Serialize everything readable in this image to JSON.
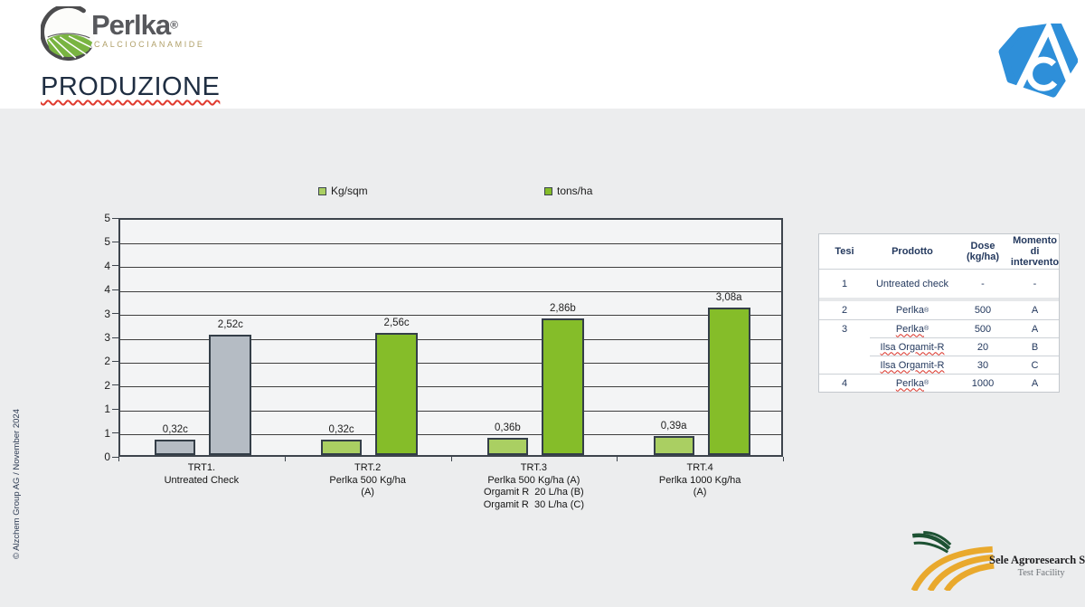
{
  "header": {
    "brand_name": "Perlka",
    "brand_registered": "®",
    "brand_subtitle": "CALCIOCIANAMIDE",
    "title": "PRODUZIONE"
  },
  "chart_data": {
    "type": "bar",
    "title": "",
    "ylim": [
      0,
      5
    ],
    "tick_interval": 0.5,
    "tick_labels_bottom_to_top": [
      "0",
      "1",
      "1",
      "2",
      "2",
      "3",
      "3",
      "4",
      "4",
      "5",
      "5"
    ],
    "grid": true,
    "legend_position": "top",
    "legend": [
      {
        "label": "Kg/sqm",
        "color": "#aacf62"
      },
      {
        "label": "tons/ha",
        "color": "#85bd29"
      }
    ],
    "categories": [
      {
        "lines": [
          "TRT1.",
          "Untreated Check"
        ]
      },
      {
        "lines": [
          "TRT.2",
          "Perlka 500 Kg/ha",
          "(A)"
        ]
      },
      {
        "lines": [
          "TRT.3",
          "Perlka 500 Kg/ha (A)",
          "Orgamit R  20 L/ha (B)",
          "Orgamit R  30 L/ha (C)"
        ]
      },
      {
        "lines": [
          "TRT.4",
          "Perlka 1000 Kg/ha",
          "(A)"
        ]
      }
    ],
    "series": [
      {
        "name": "Kg/sqm",
        "values": [
          0.32,
          0.32,
          0.36,
          0.39
        ],
        "data_labels": [
          "0,32c",
          "0,32c",
          "0,36b",
          "0,39a"
        ],
        "point_colors": [
          "#b5bcc4",
          "#aacf62",
          "#aacf62",
          "#aacf62"
        ]
      },
      {
        "name": "tons/ha",
        "values": [
          2.52,
          2.56,
          2.86,
          3.08
        ],
        "data_labels": [
          "2,52c",
          "2,56c",
          "2,86b",
          "3,08a"
        ],
        "point_colors": [
          "#b5bcc4",
          "#85bd29",
          "#85bd29",
          "#85bd29"
        ]
      }
    ]
  },
  "table": {
    "headers": [
      "Tesi",
      "Prodotto",
      "Dose (kg/ha)",
      "Momento di intervento"
    ],
    "groups": [
      {
        "tesi": "1",
        "rows": [
          {
            "prodotto": "Untreated check",
            "registered": false,
            "dose": "-",
            "momento": "-",
            "squiggle": false
          }
        ]
      },
      {
        "tesi": "2",
        "rows": [
          {
            "prodotto": "Perlka",
            "registered": true,
            "dose": "500",
            "momento": "A",
            "squiggle": false
          }
        ]
      },
      {
        "tesi": "3",
        "rows": [
          {
            "prodotto": "Perlka",
            "registered": true,
            "dose": "500",
            "momento": "A",
            "squiggle": true
          },
          {
            "prodotto": "Ilsa Orgamit-R",
            "registered": false,
            "dose": "20",
            "momento": "B",
            "squiggle": true
          },
          {
            "prodotto": "Ilsa Orgamit-R",
            "registered": false,
            "dose": "30",
            "momento": "C",
            "squiggle": true
          }
        ]
      },
      {
        "tesi": "4",
        "rows": [
          {
            "prodotto": "Perlka",
            "registered": true,
            "dose": "1000",
            "momento": "A",
            "squiggle": true
          }
        ]
      }
    ]
  },
  "footer": {
    "copyright": "© Alzchem Group AG / November 2024",
    "lab_name": "Sele Agroresearch Srl",
    "lab_subtitle": "Test Facility"
  },
  "colors": {
    "slide_band": "#ecedee",
    "plot_fill": "#f3f4f5",
    "plot_border": "#3d444c",
    "gridline": "#3e3e3e",
    "untreated_bar": "#b5bcc4",
    "kg_sqm_bar": "#aacf62",
    "tons_ha_bar": "#85bd29",
    "table_text": "#24395e",
    "title_text": "#1f2e42",
    "squiggle_red": "#d93025",
    "alzchem_blue": "#2e8fd9",
    "sele_gold": "#e9a92d",
    "sele_green": "#1d5233"
  }
}
